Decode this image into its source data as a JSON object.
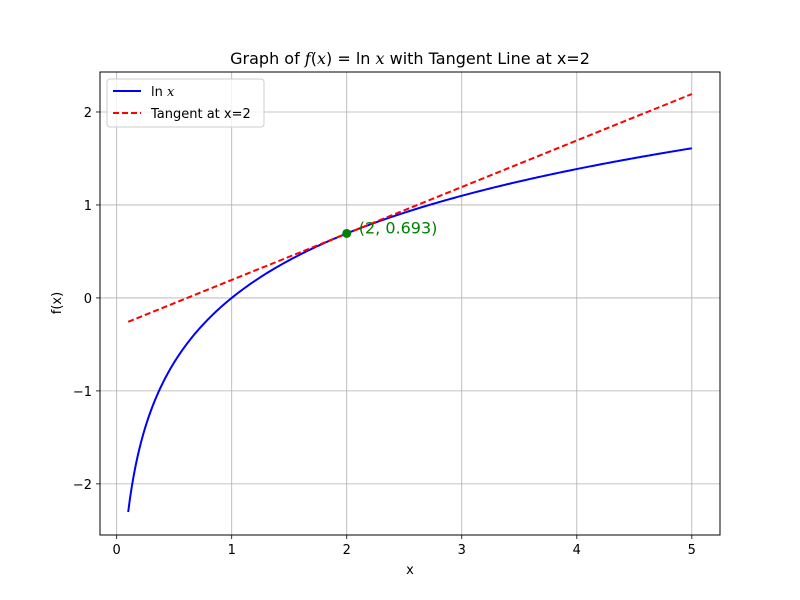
{
  "chart_data": {
    "type": "line",
    "title": "Graph of f(x) = ln x with Tangent Line at x=2",
    "title_prefix": "Graph of ",
    "title_func": "f",
    "title_open": "(",
    "title_var": "x",
    "title_close_eq": ") = ln ",
    "title_var2": "x",
    "title_suffix": " with Tangent Line at x=2",
    "xlabel": "x",
    "ylabel": "f(x)",
    "xlim": [
      -0.145,
      5.245
    ],
    "ylim": [
      -2.55,
      2.43
    ],
    "xticks": [
      0,
      1,
      2,
      3,
      4,
      5
    ],
    "xtick_labels": [
      "0",
      "1",
      "2",
      "3",
      "4",
      "5"
    ],
    "yticks": [
      -2,
      -1,
      0,
      1,
      2
    ],
    "ytick_labels": [
      "−2",
      "−1",
      "0",
      "1",
      "2"
    ],
    "grid": true,
    "legend_position": "top-left",
    "series": [
      {
        "name": "ln x",
        "legend_prefix": "ln ",
        "legend_var": "x",
        "color": "#0000ff",
        "style": "solid",
        "function": "ln",
        "x_range": [
          0.1,
          5
        ],
        "points": [
          [
            0.1,
            -2.303
          ],
          [
            0.5,
            -0.693
          ],
          [
            1,
            0
          ],
          [
            2,
            0.693
          ],
          [
            3,
            1.099
          ],
          [
            4,
            1.386
          ],
          [
            5,
            1.609
          ]
        ]
      },
      {
        "name": "Tangent at x=2",
        "color": "#ff0000",
        "style": "dashed",
        "function": "tangent",
        "x_range": [
          0.1,
          5
        ],
        "points": [
          [
            0.1,
            -0.257
          ],
          [
            5,
            2.193
          ]
        ]
      }
    ],
    "point": {
      "x": 2,
      "y": 0.693,
      "color": "#008000"
    },
    "annotation": {
      "text": "(2, 0.693)",
      "x": 2,
      "y": 0.693,
      "color": "#008000"
    }
  }
}
